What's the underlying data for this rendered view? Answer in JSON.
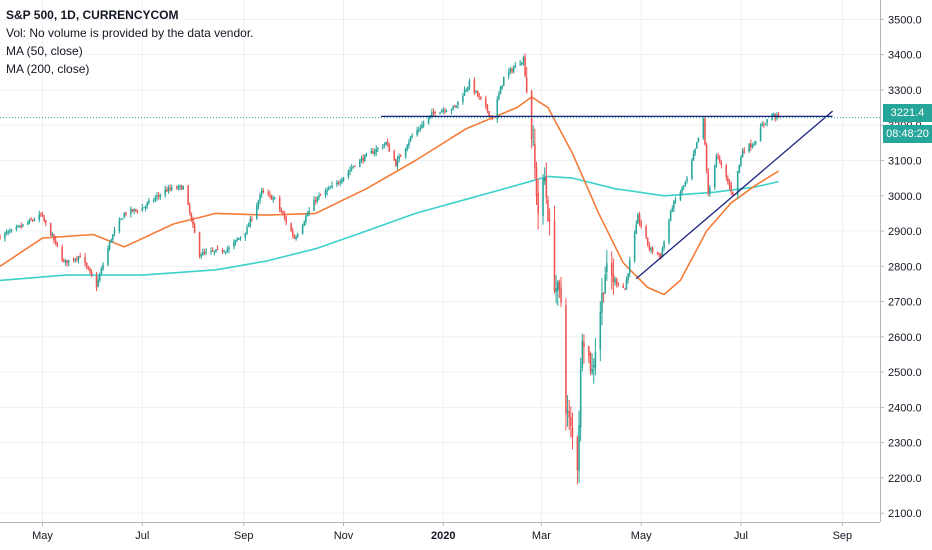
{
  "legend": {
    "title": "S&P 500, 1D, CURRENCYCOM",
    "volume_note": "Vol: No volume is provided by the data vendor.",
    "ma_fast": "MA (50, close)",
    "ma_slow": "MA (200, close)"
  },
  "price_tags": {
    "last_price": "3221.4",
    "countdown": "08:48:20"
  },
  "colors": {
    "up": "#26a69a",
    "down": "#ef5350",
    "ma_fast": "#f57c38",
    "ma_slow": "#3dd1cc",
    "trendline": "#1a237e",
    "price_line": "#26a69a",
    "grid": "#eef0f3",
    "axis_text": "#131722"
  },
  "chart_data": {
    "type": "candlestick",
    "title": "S&P 500, 1D, CURRENCYCOM",
    "y_ticks": [
      3500,
      3400,
      3300,
      3200,
      3100,
      3000,
      2900,
      2800,
      2700,
      2600,
      2500,
      2400,
      2300,
      2200,
      2100
    ],
    "ylim": [
      2075,
      3555
    ],
    "x_labels": [
      "May",
      "Jul",
      "Sep",
      "Nov",
      "2020",
      "Mar",
      "May",
      "Jul",
      "Sep"
    ],
    "x_label_months": [
      "2019-05",
      "2019-07",
      "2019-09",
      "2019-11",
      "2020-01",
      "2020-03",
      "2020-05",
      "2020-07",
      "2020-09"
    ],
    "x_range": [
      "2019-04-05",
      "2020-09-24"
    ],
    "grid": true,
    "last_price": 3221.4,
    "price_path": [
      [
        "2019-04-05",
        2885
      ],
      [
        "2019-04-15",
        2905
      ],
      [
        "2019-04-30",
        2945
      ],
      [
        "2019-05-08",
        2875
      ],
      [
        "2019-05-14",
        2810
      ],
      [
        "2019-05-24",
        2830
      ],
      [
        "2019-06-03",
        2745
      ],
      [
        "2019-06-12",
        2880
      ],
      [
        "2019-06-20",
        2950
      ],
      [
        "2019-07-01",
        2965
      ],
      [
        "2019-07-15",
        3015
      ],
      [
        "2019-07-26",
        3025
      ],
      [
        "2019-08-05",
        2835
      ],
      [
        "2019-08-14",
        2840
      ],
      [
        "2019-08-23",
        2850
      ],
      [
        "2019-09-03",
        2905
      ],
      [
        "2019-09-12",
        3010
      ],
      [
        "2019-09-20",
        2990
      ],
      [
        "2019-10-02",
        2880
      ],
      [
        "2019-10-15",
        2990
      ],
      [
        "2019-10-28",
        3035
      ],
      [
        "2019-11-08",
        3090
      ],
      [
        "2019-11-27",
        3150
      ],
      [
        "2019-12-03",
        3090
      ],
      [
        "2019-12-12",
        3165
      ],
      [
        "2019-12-27",
        3240
      ],
      [
        "2020-01-08",
        3250
      ],
      [
        "2020-01-17",
        3320
      ],
      [
        "2020-01-31",
        3220
      ],
      [
        "2020-02-07",
        3335
      ],
      [
        "2020-02-19",
        3390
      ],
      [
        "2020-02-25",
        3130
      ],
      [
        "2020-02-28",
        2955
      ],
      [
        "2020-03-03",
        3050
      ],
      [
        "2020-03-09",
        2755
      ],
      [
        "2020-03-13",
        2700
      ],
      [
        "2020-03-16",
        2405
      ],
      [
        "2020-03-23",
        2240
      ],
      [
        "2020-03-26",
        2620
      ],
      [
        "2020-04-01",
        2500
      ],
      [
        "2020-04-09",
        2785
      ],
      [
        "2020-04-21",
        2735
      ],
      [
        "2020-04-29",
        2940
      ],
      [
        "2020-05-06",
        2850
      ],
      [
        "2020-05-13",
        2830
      ],
      [
        "2020-05-20",
        2970
      ],
      [
        "2020-05-29",
        3045
      ],
      [
        "2020-06-08",
        3215
      ],
      [
        "2020-06-11",
        3000
      ],
      [
        "2020-06-16",
        3115
      ],
      [
        "2020-06-26",
        3005
      ],
      [
        "2020-07-02",
        3130
      ],
      [
        "2020-07-09",
        3150
      ],
      [
        "2020-07-14",
        3200
      ],
      [
        "2020-07-20",
        3230
      ],
      [
        "2020-07-24",
        3221.4
      ]
    ],
    "series": [
      {
        "name": "MA (50, close)",
        "points": [
          [
            "2019-04-05",
            2800
          ],
          [
            "2019-05-01",
            2880
          ],
          [
            "2019-06-01",
            2890
          ],
          [
            "2019-06-20",
            2855
          ],
          [
            "2019-07-20",
            2920
          ],
          [
            "2019-08-15",
            2950
          ],
          [
            "2019-09-15",
            2945
          ],
          [
            "2019-10-15",
            2950
          ],
          [
            "2019-11-15",
            3020
          ],
          [
            "2019-12-15",
            3100
          ],
          [
            "2020-01-15",
            3190
          ],
          [
            "2020-02-15",
            3250
          ],
          [
            "2020-02-24",
            3280
          ],
          [
            "2020-03-05",
            3250
          ],
          [
            "2020-03-20",
            3120
          ],
          [
            "2020-04-05",
            2950
          ],
          [
            "2020-04-20",
            2810
          ],
          [
            "2020-05-05",
            2740
          ],
          [
            "2020-05-15",
            2720
          ],
          [
            "2020-05-25",
            2760
          ],
          [
            "2020-06-10",
            2900
          ],
          [
            "2020-06-25",
            2980
          ],
          [
            "2020-07-10",
            3030
          ],
          [
            "2020-07-24",
            3070
          ]
        ]
      },
      {
        "name": "MA (200, close)",
        "points": [
          [
            "2019-04-05",
            2760
          ],
          [
            "2019-05-15",
            2775
          ],
          [
            "2019-07-01",
            2775
          ],
          [
            "2019-08-15",
            2790
          ],
          [
            "2019-09-15",
            2815
          ],
          [
            "2019-10-15",
            2850
          ],
          [
            "2019-11-15",
            2900
          ],
          [
            "2019-12-15",
            2950
          ],
          [
            "2020-01-15",
            2990
          ],
          [
            "2020-02-15",
            3030
          ],
          [
            "2020-03-05",
            3055
          ],
          [
            "2020-03-20",
            3050
          ],
          [
            "2020-04-15",
            3020
          ],
          [
            "2020-05-15",
            3000
          ],
          [
            "2020-06-15",
            3010
          ],
          [
            "2020-07-10",
            3025
          ],
          [
            "2020-07-24",
            3040
          ]
        ]
      }
    ],
    "drawings": [
      {
        "type": "horizontal_resistance",
        "from": [
          "2019-11-24",
          3225
        ],
        "to": [
          "2020-08-26",
          3225
        ]
      },
      {
        "type": "rising_trendline",
        "from": [
          "2020-04-28",
          2765
        ],
        "to": [
          "2020-08-26",
          3240
        ]
      }
    ]
  }
}
